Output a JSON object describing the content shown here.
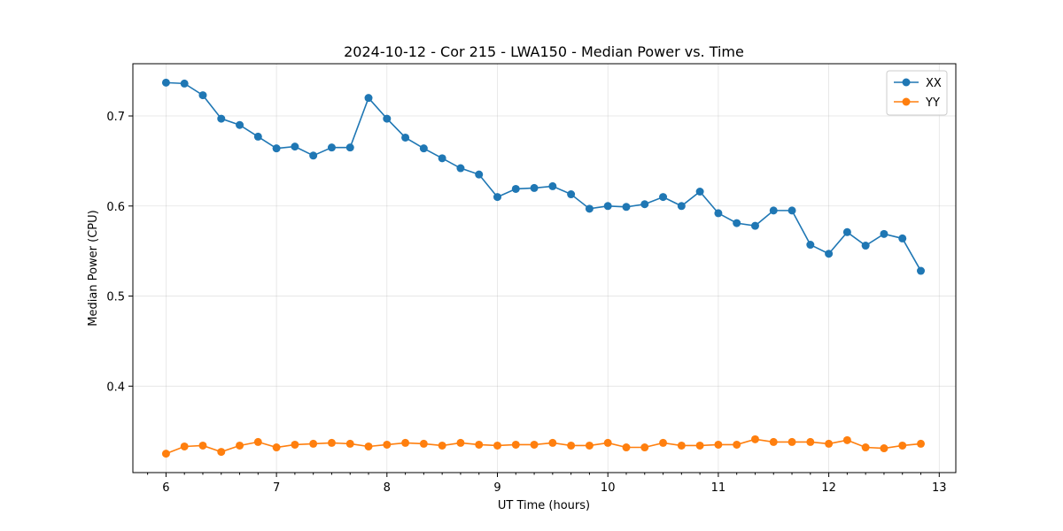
{
  "chart_data": {
    "type": "line",
    "title": "2024-10-12 - Cor 215 - LWA150 - Median Power vs. Time",
    "xlabel": "UT Time (hours)",
    "ylabel": "Median Power (CPU)",
    "xlim": [
      5.7,
      13.15
    ],
    "ylim": [
      0.304,
      0.758
    ],
    "xticks": [
      6,
      7,
      8,
      9,
      10,
      11,
      12,
      13
    ],
    "xtick_labels": [
      "6",
      "7",
      "8",
      "9",
      "10",
      "11",
      "12",
      "13"
    ],
    "yticks": [
      0.4,
      0.5,
      0.6,
      0.7
    ],
    "ytick_labels": [
      "0.4",
      "0.5",
      "0.6",
      "0.7"
    ],
    "grid": true,
    "legend_position": "top-right",
    "x": [
      6.0,
      6.1667,
      6.3333,
      6.5,
      6.6667,
      6.8333,
      7.0,
      7.1667,
      7.3333,
      7.5,
      7.6667,
      7.8333,
      8.0,
      8.1667,
      8.3333,
      8.5,
      8.6667,
      8.8333,
      9.0,
      9.1667,
      9.3333,
      9.5,
      9.6667,
      9.8333,
      10.0,
      10.1667,
      10.3333,
      10.5,
      10.6667,
      10.8333,
      11.0,
      11.1667,
      11.3333,
      11.5,
      11.6667,
      11.8333,
      12.0,
      12.1667,
      12.3333,
      12.5,
      12.6667,
      12.8333
    ],
    "series": [
      {
        "name": "XX",
        "color": "#1f77b4",
        "values": [
          0.737,
          0.736,
          0.723,
          0.697,
          0.69,
          0.677,
          0.664,
          0.666,
          0.656,
          0.665,
          0.665,
          0.72,
          0.697,
          0.676,
          0.664,
          0.653,
          0.642,
          0.635,
          0.61,
          0.619,
          0.62,
          0.622,
          0.613,
          0.597,
          0.6,
          0.599,
          0.602,
          0.61,
          0.6,
          0.616,
          0.592,
          0.581,
          0.578,
          0.595,
          0.595,
          0.557,
          0.547,
          0.571,
          0.556,
          0.569,
          0.564,
          0.528
        ]
      },
      {
        "name": "YY",
        "color": "#ff7f0e",
        "values": [
          0.325,
          0.333,
          0.334,
          0.327,
          0.334,
          0.338,
          0.332,
          0.335,
          0.336,
          0.337,
          0.336,
          0.333,
          0.335,
          0.337,
          0.336,
          0.334,
          0.337,
          0.335,
          0.334,
          0.335,
          0.335,
          0.337,
          0.334,
          0.334,
          0.337,
          0.332,
          0.332,
          0.337,
          0.334,
          0.334,
          0.335,
          0.335,
          0.341,
          0.338,
          0.338,
          0.338,
          0.336,
          0.34,
          0.332,
          0.331,
          0.334,
          0.336
        ]
      }
    ]
  }
}
